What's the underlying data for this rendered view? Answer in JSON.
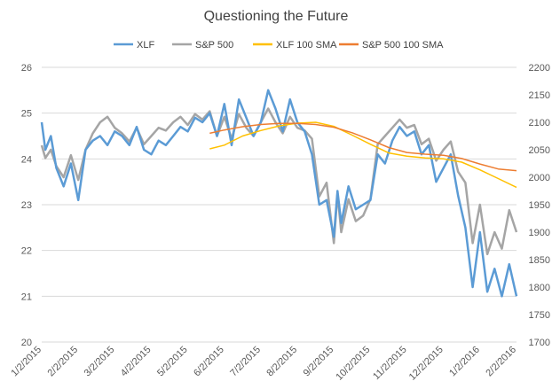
{
  "chart_data": {
    "type": "line",
    "title": "Questioning the Future",
    "x_tick_labels": [
      "1/2/2015",
      "2/2/2015",
      "3/2/2015",
      "4/2/2015",
      "5/2/2015",
      "6/2/2015",
      "7/2/2015",
      "8/2/2015",
      "9/2/2015",
      "10/2/2015",
      "11/2/2015",
      "12/2/2015",
      "1/2/2016",
      "2/2/2016"
    ],
    "y_left": {
      "min": 20,
      "max": 26,
      "ticks": [
        20,
        21,
        22,
        23,
        24,
        25,
        26
      ]
    },
    "y_right": {
      "min": 1700,
      "max": 2200,
      "ticks": [
        1700,
        1750,
        1800,
        1850,
        1900,
        1950,
        2000,
        2050,
        2100,
        2150,
        2200
      ]
    },
    "grid": "horizontal",
    "legend_position": "top",
    "series": [
      {
        "name": "XLF",
        "axis": "left",
        "color": "#5B9BD5",
        "x": [
          0,
          0.1,
          0.25,
          0.4,
          0.6,
          0.8,
          1.0,
          1.2,
          1.4,
          1.6,
          1.8,
          2.0,
          2.2,
          2.4,
          2.6,
          2.8,
          3.0,
          3.2,
          3.4,
          3.6,
          3.8,
          4.0,
          4.2,
          4.4,
          4.6,
          4.8,
          5.0,
          5.2,
          5.4,
          5.6,
          5.8,
          6.0,
          6.2,
          6.4,
          6.6,
          6.8,
          7.0,
          7.2,
          7.4,
          7.6,
          7.8,
          8.0,
          8.1,
          8.2,
          8.4,
          8.6,
          8.8,
          9.0,
          9.2,
          9.4,
          9.6,
          9.8,
          10.0,
          10.2,
          10.4,
          10.6,
          10.8,
          11.0,
          11.2,
          11.4,
          11.6,
          11.8,
          12.0,
          12.2,
          12.4,
          12.6,
          12.8,
          13.0
        ],
        "values": [
          24.8,
          24.2,
          24.5,
          23.8,
          23.4,
          23.9,
          23.1,
          24.2,
          24.4,
          24.5,
          24.3,
          24.6,
          24.5,
          24.3,
          24.7,
          24.2,
          24.1,
          24.4,
          24.3,
          24.5,
          24.7,
          24.6,
          24.9,
          24.8,
          25.0,
          24.5,
          25.2,
          24.3,
          25.3,
          24.9,
          24.5,
          24.8,
          25.5,
          25.1,
          24.6,
          25.3,
          24.8,
          24.6,
          24.1,
          23.0,
          23.1,
          22.3,
          23.3,
          22.6,
          23.4,
          22.9,
          23.0,
          23.1,
          24.1,
          23.9,
          24.4,
          24.7,
          24.5,
          24.6,
          24.1,
          24.3,
          23.5,
          23.8,
          24.1,
          23.2,
          22.5,
          21.2,
          22.4,
          21.1,
          21.6,
          21.0,
          21.7,
          21.0
        ]
      },
      {
        "name": "S&P 500",
        "axis": "right",
        "color": "#A5A5A5",
        "x": [
          0,
          0.1,
          0.25,
          0.4,
          0.6,
          0.8,
          1.0,
          1.2,
          1.4,
          1.6,
          1.8,
          2.0,
          2.2,
          2.4,
          2.6,
          2.8,
          3.0,
          3.2,
          3.4,
          3.6,
          3.8,
          4.0,
          4.2,
          4.4,
          4.6,
          4.8,
          5.0,
          5.2,
          5.4,
          5.6,
          5.8,
          6.0,
          6.2,
          6.4,
          6.6,
          6.8,
          7.0,
          7.2,
          7.4,
          7.6,
          7.8,
          8.0,
          8.1,
          8.2,
          8.4,
          8.6,
          8.8,
          9.0,
          9.2,
          9.4,
          9.6,
          9.8,
          10.0,
          10.2,
          10.4,
          10.6,
          10.8,
          11.0,
          11.2,
          11.4,
          11.6,
          11.8,
          12.0,
          12.2,
          12.4,
          12.6,
          12.8,
          13.0
        ],
        "values": [
          2058,
          2035,
          2050,
          2020,
          2000,
          2040,
          1995,
          2050,
          2080,
          2100,
          2110,
          2090,
          2080,
          2065,
          2090,
          2060,
          2075,
          2090,
          2085,
          2100,
          2110,
          2095,
          2115,
          2105,
          2120,
          2075,
          2110,
          2070,
          2115,
          2090,
          2075,
          2100,
          2125,
          2100,
          2080,
          2110,
          2090,
          2085,
          2070,
          1965,
          1990,
          1880,
          1970,
          1900,
          1960,
          1920,
          1930,
          1960,
          2060,
          2075,
          2090,
          2105,
          2090,
          2095,
          2060,
          2070,
          2030,
          2050,
          2065,
          2010,
          1990,
          1880,
          1950,
          1860,
          1900,
          1870,
          1940,
          1900
        ]
      },
      {
        "name": "XLF 100 SMA",
        "axis": "left",
        "color": "#FFC000",
        "x": [
          4.6,
          5.0,
          5.5,
          6.0,
          6.5,
          7.0,
          7.5,
          8.0,
          8.5,
          9.0,
          9.5,
          10.0,
          10.5,
          11.0,
          11.5,
          12.0,
          12.5,
          13.0
        ],
        "values": [
          24.22,
          24.3,
          24.5,
          24.62,
          24.72,
          24.78,
          24.8,
          24.71,
          24.52,
          24.32,
          24.13,
          24.06,
          24.02,
          24.0,
          23.93,
          23.76,
          23.57,
          23.38
        ]
      },
      {
        "name": "S&P 500 100 SMA",
        "axis": "right",
        "color": "#ED7D31",
        "x": [
          4.6,
          5.0,
          5.5,
          6.0,
          6.5,
          7.0,
          7.5,
          8.0,
          8.5,
          9.0,
          9.5,
          10.0,
          10.5,
          11.0,
          11.5,
          12.0,
          12.5,
          13.0
        ],
        "values": [
          2080,
          2086,
          2092,
          2096,
          2098,
          2098,
          2096,
          2091,
          2081,
          2068,
          2054,
          2045,
          2042,
          2040,
          2034,
          2024,
          2015,
          2012
        ]
      }
    ]
  }
}
